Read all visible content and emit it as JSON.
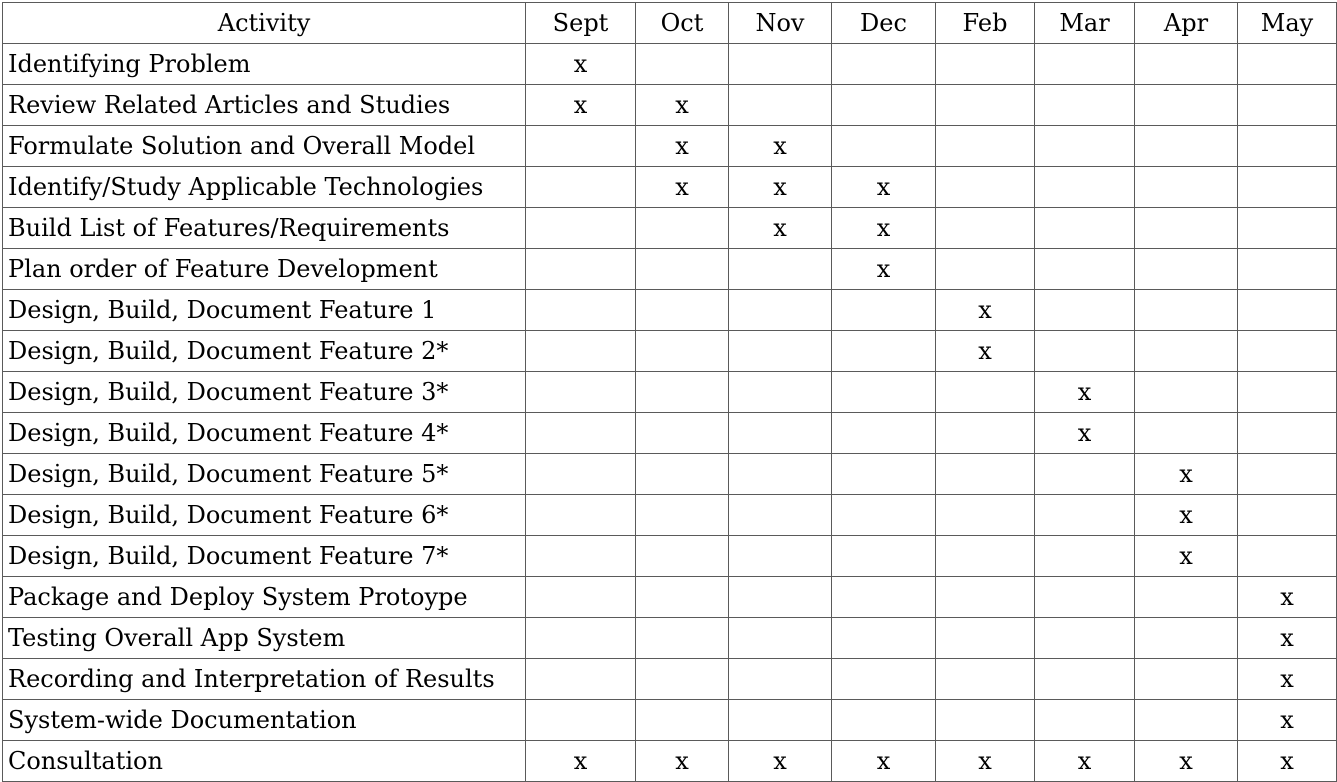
{
  "table": {
    "headers": [
      "Activity",
      "Sept",
      "Oct",
      "Nov",
      "Dec",
      "Feb",
      "Mar",
      "Apr",
      "May"
    ],
    "rows": [
      {
        "activity": "Identifying Problem",
        "marks": [
          "x",
          "",
          "",
          "",
          "",
          "",
          "",
          ""
        ]
      },
      {
        "activity": "Review Related Articles and Studies",
        "marks": [
          "x",
          "x",
          "",
          "",
          "",
          "",
          "",
          ""
        ]
      },
      {
        "activity": "Formulate Solution and Overall Model",
        "marks": [
          "",
          "x",
          "x",
          "",
          "",
          "",
          "",
          ""
        ]
      },
      {
        "activity": "Identify/Study Applicable Technologies",
        "marks": [
          "",
          "x",
          "x",
          "x",
          "",
          "",
          "",
          ""
        ]
      },
      {
        "activity": "Build List of Features/Requirements",
        "marks": [
          "",
          "",
          "x",
          "x",
          "",
          "",
          "",
          ""
        ]
      },
      {
        "activity": "Plan order of Feature Development",
        "marks": [
          "",
          "",
          "",
          "x",
          "",
          "",
          "",
          ""
        ]
      },
      {
        "activity": "Design, Build, Document Feature 1",
        "marks": [
          "",
          "",
          "",
          "",
          "x",
          "",
          "",
          ""
        ]
      },
      {
        "activity": "Design, Build, Document Feature 2*",
        "marks": [
          "",
          "",
          "",
          "",
          "x",
          "",
          "",
          ""
        ]
      },
      {
        "activity": "Design, Build, Document Feature 3*",
        "marks": [
          "",
          "",
          "",
          "",
          "",
          "x",
          "",
          ""
        ]
      },
      {
        "activity": "Design, Build, Document Feature 4*",
        "marks": [
          "",
          "",
          "",
          "",
          "",
          "x",
          "",
          ""
        ]
      },
      {
        "activity": "Design, Build, Document Feature 5*",
        "marks": [
          "",
          "",
          "",
          "",
          "",
          "",
          "x",
          ""
        ]
      },
      {
        "activity": "Design, Build, Document Feature 6*",
        "marks": [
          "",
          "",
          "",
          "",
          "",
          "",
          "x",
          ""
        ]
      },
      {
        "activity": "Design, Build, Document Feature 7*",
        "marks": [
          "",
          "",
          "",
          "",
          "",
          "",
          "x",
          ""
        ]
      },
      {
        "activity": "Package and Deploy System Protoype",
        "marks": [
          "",
          "",
          "",
          "",
          "",
          "",
          "",
          "x"
        ]
      },
      {
        "activity": "Testing Overall App System",
        "marks": [
          "",
          "",
          "",
          "",
          "",
          "",
          "",
          "x"
        ]
      },
      {
        "activity": "Recording and Interpretation of Results",
        "marks": [
          "",
          "",
          "",
          "",
          "",
          "",
          "",
          "x"
        ]
      },
      {
        "activity": "System-wide Documentation",
        "marks": [
          "",
          "",
          "",
          "",
          "",
          "",
          "",
          "x"
        ]
      },
      {
        "activity": "Consultation",
        "marks": [
          "x",
          "x",
          "x",
          "x",
          "x",
          "x",
          "x",
          "x"
        ]
      }
    ]
  }
}
